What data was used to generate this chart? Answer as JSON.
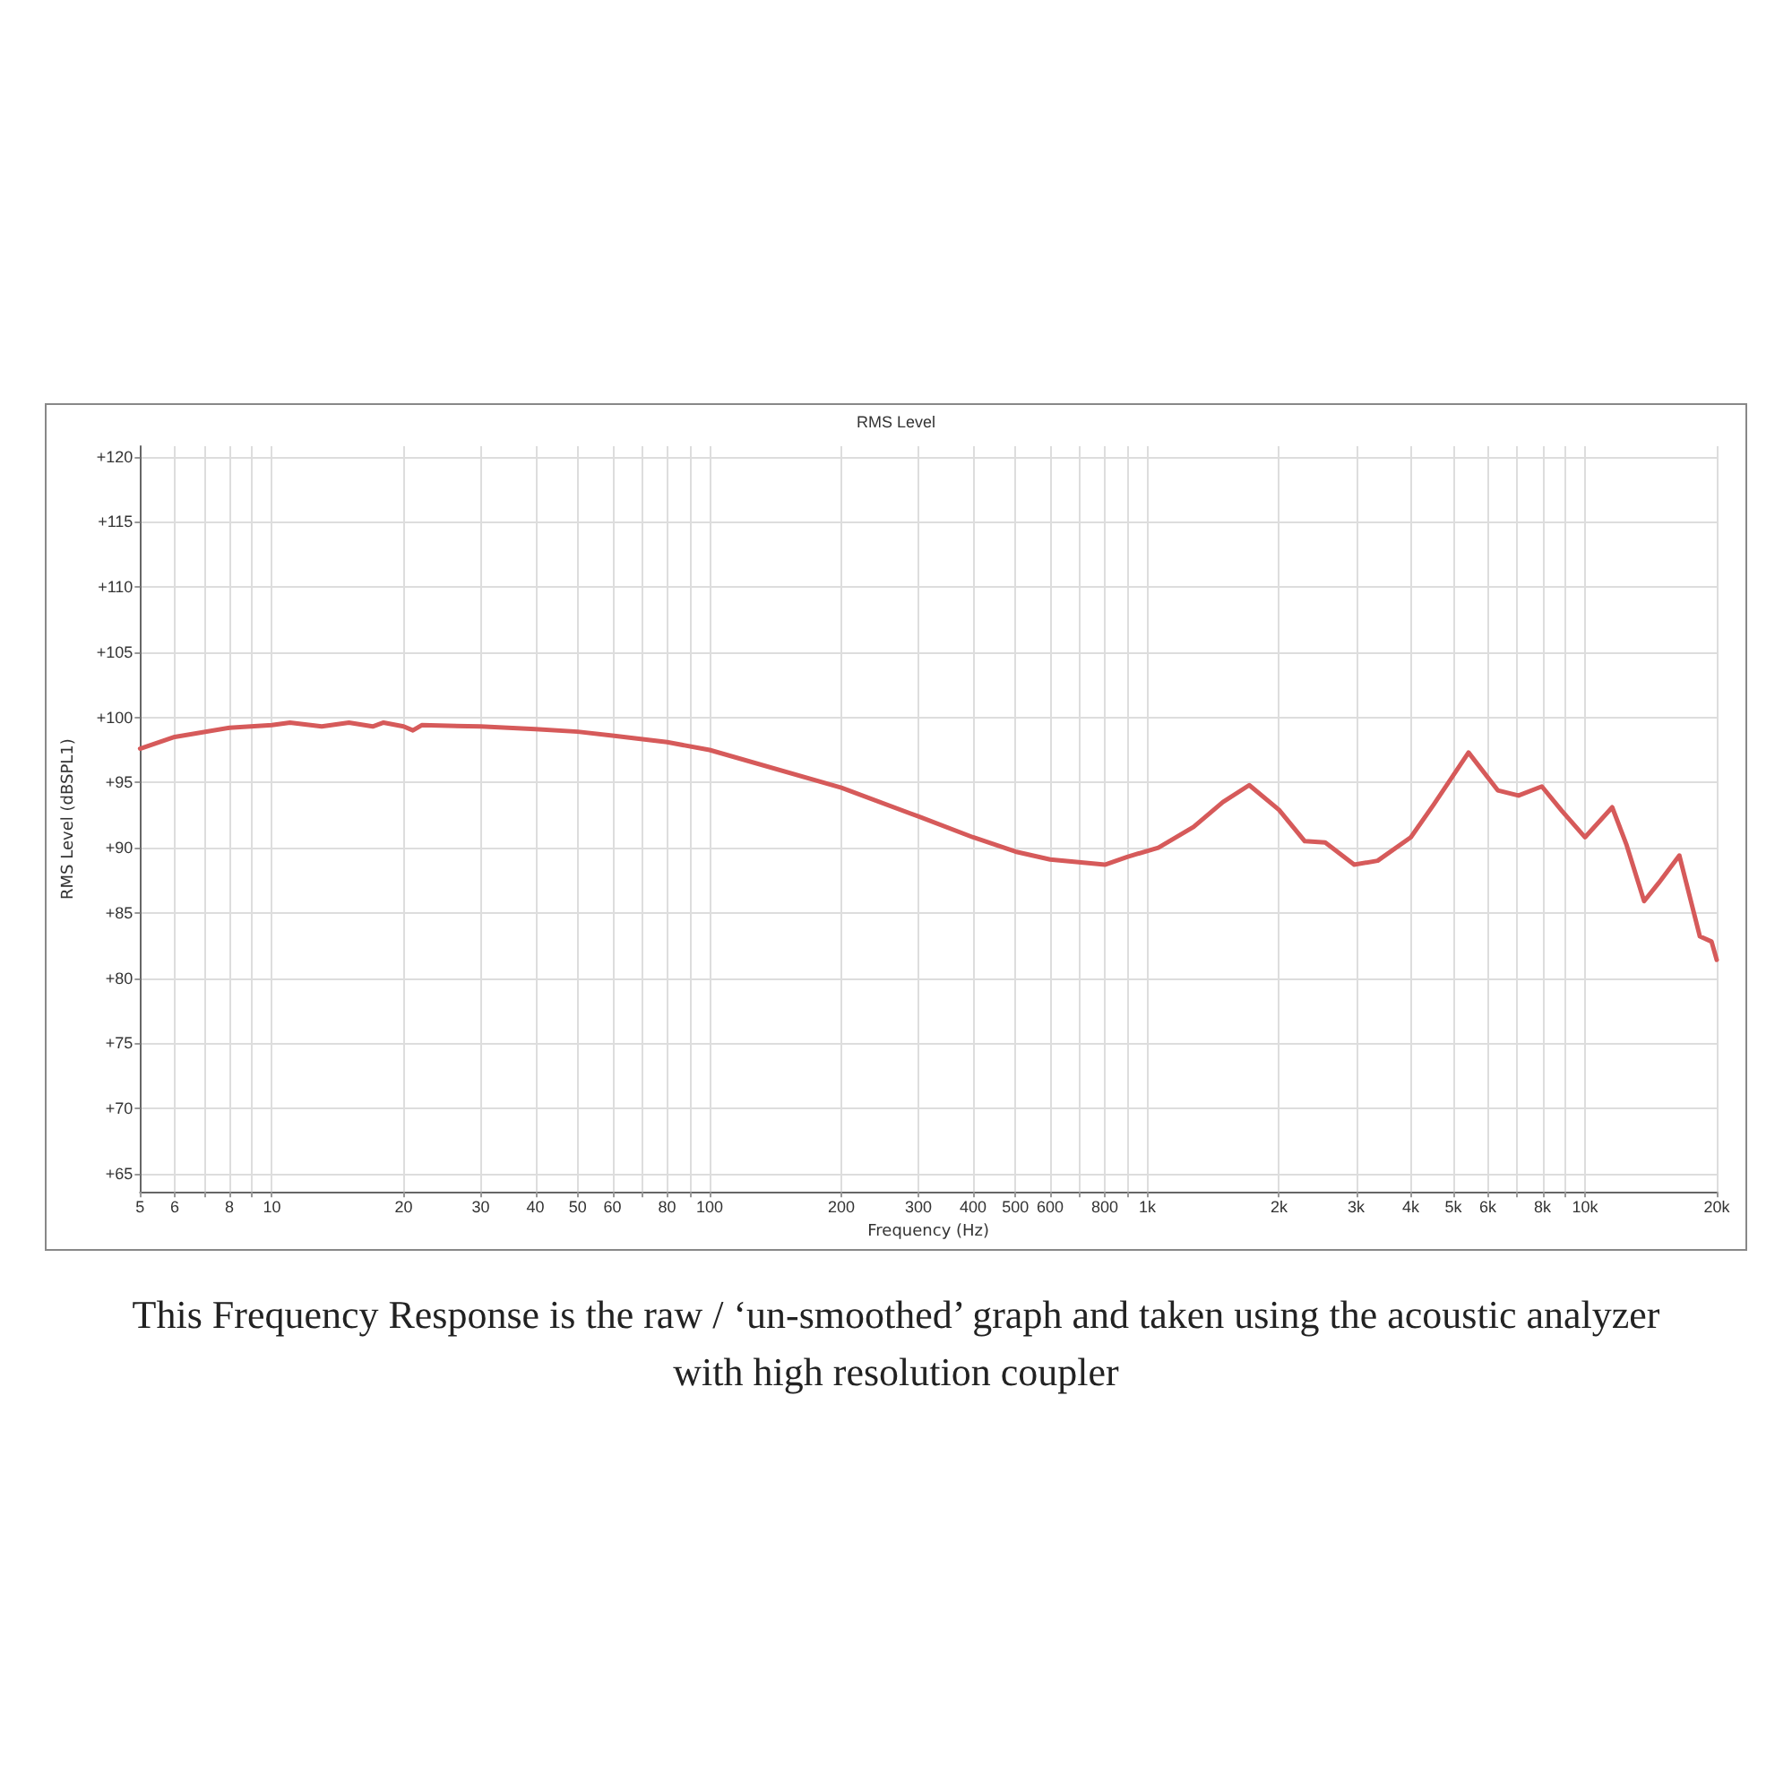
{
  "chart_data": {
    "type": "line",
    "title": "RMS Level",
    "xlabel": "Frequency (Hz)",
    "ylabel": "RMS Level (dBSPL1)",
    "annotations": [
      "This Frequency Response is the raw / ‘un-smoothed’ graph and taken using the acoustic analyzer with high resolution coupler"
    ],
    "log": "x",
    "grid": true,
    "marker": "none",
    "xlim": [
      5,
      20000
    ],
    "xticks": [
      5,
      6,
      {
        "value": 7,
        "label": null
      },
      8,
      {
        "value": 9,
        "label": null
      },
      10,
      20,
      30,
      40,
      50,
      60,
      {
        "value": 70,
        "label": null
      },
      80,
      {
        "value": 90,
        "label": null
      },
      100,
      200,
      300,
      400,
      500,
      600,
      {
        "value": 700,
        "label": null
      },
      800,
      {
        "value": 900,
        "label": null
      },
      {
        "value": 1000,
        "label": "1k"
      },
      {
        "value": 2000,
        "label": "2k"
      },
      {
        "value": 3000,
        "label": "3k"
      },
      {
        "value": 4000,
        "label": "4k"
      },
      {
        "value": 5000,
        "label": "5k"
      },
      {
        "value": 6000,
        "label": "6k"
      },
      {
        "value": 7000,
        "label": null
      },
      {
        "value": 8000,
        "label": "8k"
      },
      {
        "value": 9000,
        "label": null
      },
      {
        "value": 10000,
        "label": "10k"
      },
      {
        "value": 20000,
        "label": "20k"
      }
    ],
    "ylim": [
      63.6,
      120.8
    ],
    "yticks": [
      {
        "value": 65,
        "label": "+65"
      },
      {
        "value": 70,
        "label": "+70"
      },
      {
        "value": 75,
        "label": "+75"
      },
      {
        "value": 80,
        "label": "+80"
      },
      {
        "value": 85,
        "label": "+85"
      },
      {
        "value": 90,
        "label": "+90"
      },
      {
        "value": 95,
        "label": "+95"
      },
      {
        "value": 100,
        "label": "+100"
      },
      {
        "value": 105,
        "label": "+105"
      },
      {
        "value": 110,
        "label": "+110"
      },
      {
        "value": 115,
        "label": "+115"
      },
      {
        "value": 120,
        "label": "+120"
      }
    ],
    "series": [
      {
        "color": "#d65a5a",
        "x": [
          5,
          6,
          8,
          10,
          11,
          13,
          15,
          17,
          18,
          20,
          21,
          22,
          30,
          40,
          50,
          60,
          80,
          100,
          200,
          300,
          400,
          500,
          600,
          800,
          900,
          1060,
          1276,
          1489,
          1710,
          2000,
          2290,
          2550,
          2970,
          3360,
          4000,
          4510,
          5420,
          6320,
          7050,
          7970,
          8870,
          10000,
          11540,
          12450,
          13650,
          14740,
          16430,
          18300,
          19460,
          20000
        ],
        "values": [
          97.6,
          98.5,
          99.2,
          99.4,
          99.6,
          99.3,
          99.6,
          99.3,
          99.6,
          99.3,
          99.0,
          99.4,
          99.3,
          99.1,
          98.9,
          98.6,
          98.1,
          97.5,
          94.6,
          92.4,
          90.8,
          89.7,
          89.1,
          88.7,
          89.3,
          90.0,
          91.6,
          93.5,
          94.8,
          92.9,
          90.5,
          90.4,
          88.7,
          89.0,
          90.8,
          93.3,
          97.3,
          94.4,
          94.0,
          94.7,
          92.8,
          90.8,
          93.1,
          90.2,
          85.9,
          87.3,
          89.4,
          83.2,
          82.8,
          81.4
        ]
      }
    ]
  }
}
